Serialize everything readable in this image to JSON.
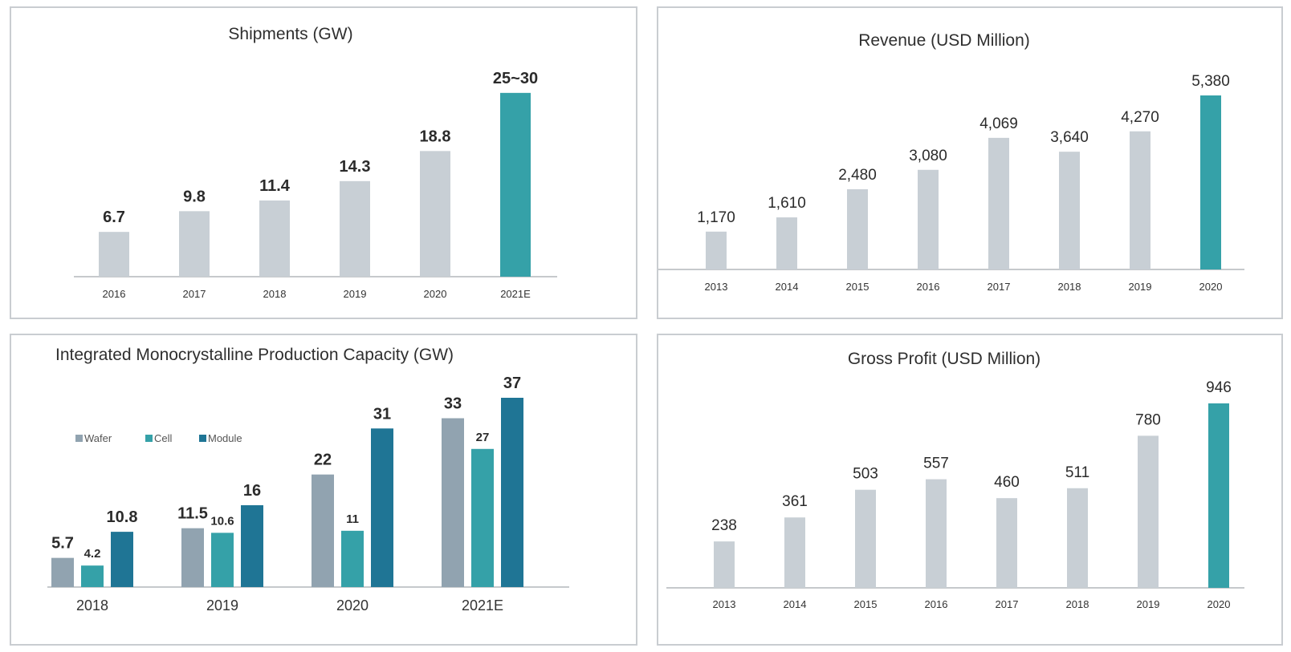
{
  "colors": {
    "grey_bar": "#c8cfd5",
    "teal": "#35a1a8",
    "wafer": "#91a3b0",
    "cell": "#35a1a8",
    "module": "#1f7595",
    "axis": "#c6c9cc"
  },
  "chart_data": [
    {
      "id": "shipments",
      "type": "bar",
      "title": "Shipments (GW)",
      "categories": [
        "2016",
        "2017",
        "2018",
        "2019",
        "2020",
        "2021E"
      ],
      "values": [
        6.7,
        9.8,
        11.4,
        14.3,
        18.8,
        27.5
      ],
      "value_labels": [
        "6.7",
        "9.8",
        "11.4",
        "14.3",
        "18.8",
        "25~30"
      ],
      "highlight_index": 5,
      "ylim": [
        0,
        30
      ]
    },
    {
      "id": "revenue",
      "type": "bar",
      "title": "Revenue (USD Million)",
      "categories": [
        "2013",
        "2014",
        "2015",
        "2016",
        "2017",
        "2018",
        "2019",
        "2020"
      ],
      "values": [
        1170,
        1610,
        2480,
        3080,
        4069,
        3640,
        4270,
        5380
      ],
      "value_labels": [
        "1,170",
        "1,610",
        "2,480",
        "3,080",
        "4,069",
        "3,640",
        "4,270",
        "5,380"
      ],
      "highlight_index": 7,
      "ylim": [
        0,
        5380
      ]
    },
    {
      "id": "capacity",
      "type": "bar",
      "title": "Integrated Monocrystalline Production Capacity (GW)",
      "categories": [
        "2018",
        "2019",
        "2020",
        "2021E"
      ],
      "legend": "left",
      "series": [
        {
          "name": "Wafer",
          "values": [
            5.7,
            11.5,
            22,
            33
          ],
          "labels": [
            "5.7",
            "11.5",
            "22",
            "33"
          ]
        },
        {
          "name": "Cell",
          "values": [
            4.2,
            10.6,
            11,
            27
          ],
          "labels": [
            "4.2",
            "10.6",
            "11",
            "27"
          ]
        },
        {
          "name": "Module",
          "values": [
            10.8,
            16,
            31,
            37
          ],
          "labels": [
            "10.8",
            "16",
            "31",
            "37"
          ]
        }
      ],
      "ylim": [
        0,
        37
      ]
    },
    {
      "id": "gross",
      "type": "bar",
      "title": "Gross Profit (USD Million)",
      "categories": [
        "2013",
        "2014",
        "2015",
        "2016",
        "2017",
        "2018",
        "2019",
        "2020"
      ],
      "values": [
        238,
        361,
        503,
        557,
        460,
        511,
        780,
        946
      ],
      "value_labels": [
        "238",
        "361",
        "503",
        "557",
        "460",
        "511",
        "780",
        "946"
      ],
      "highlight_index": 7,
      "ylim": [
        0,
        946
      ]
    }
  ]
}
